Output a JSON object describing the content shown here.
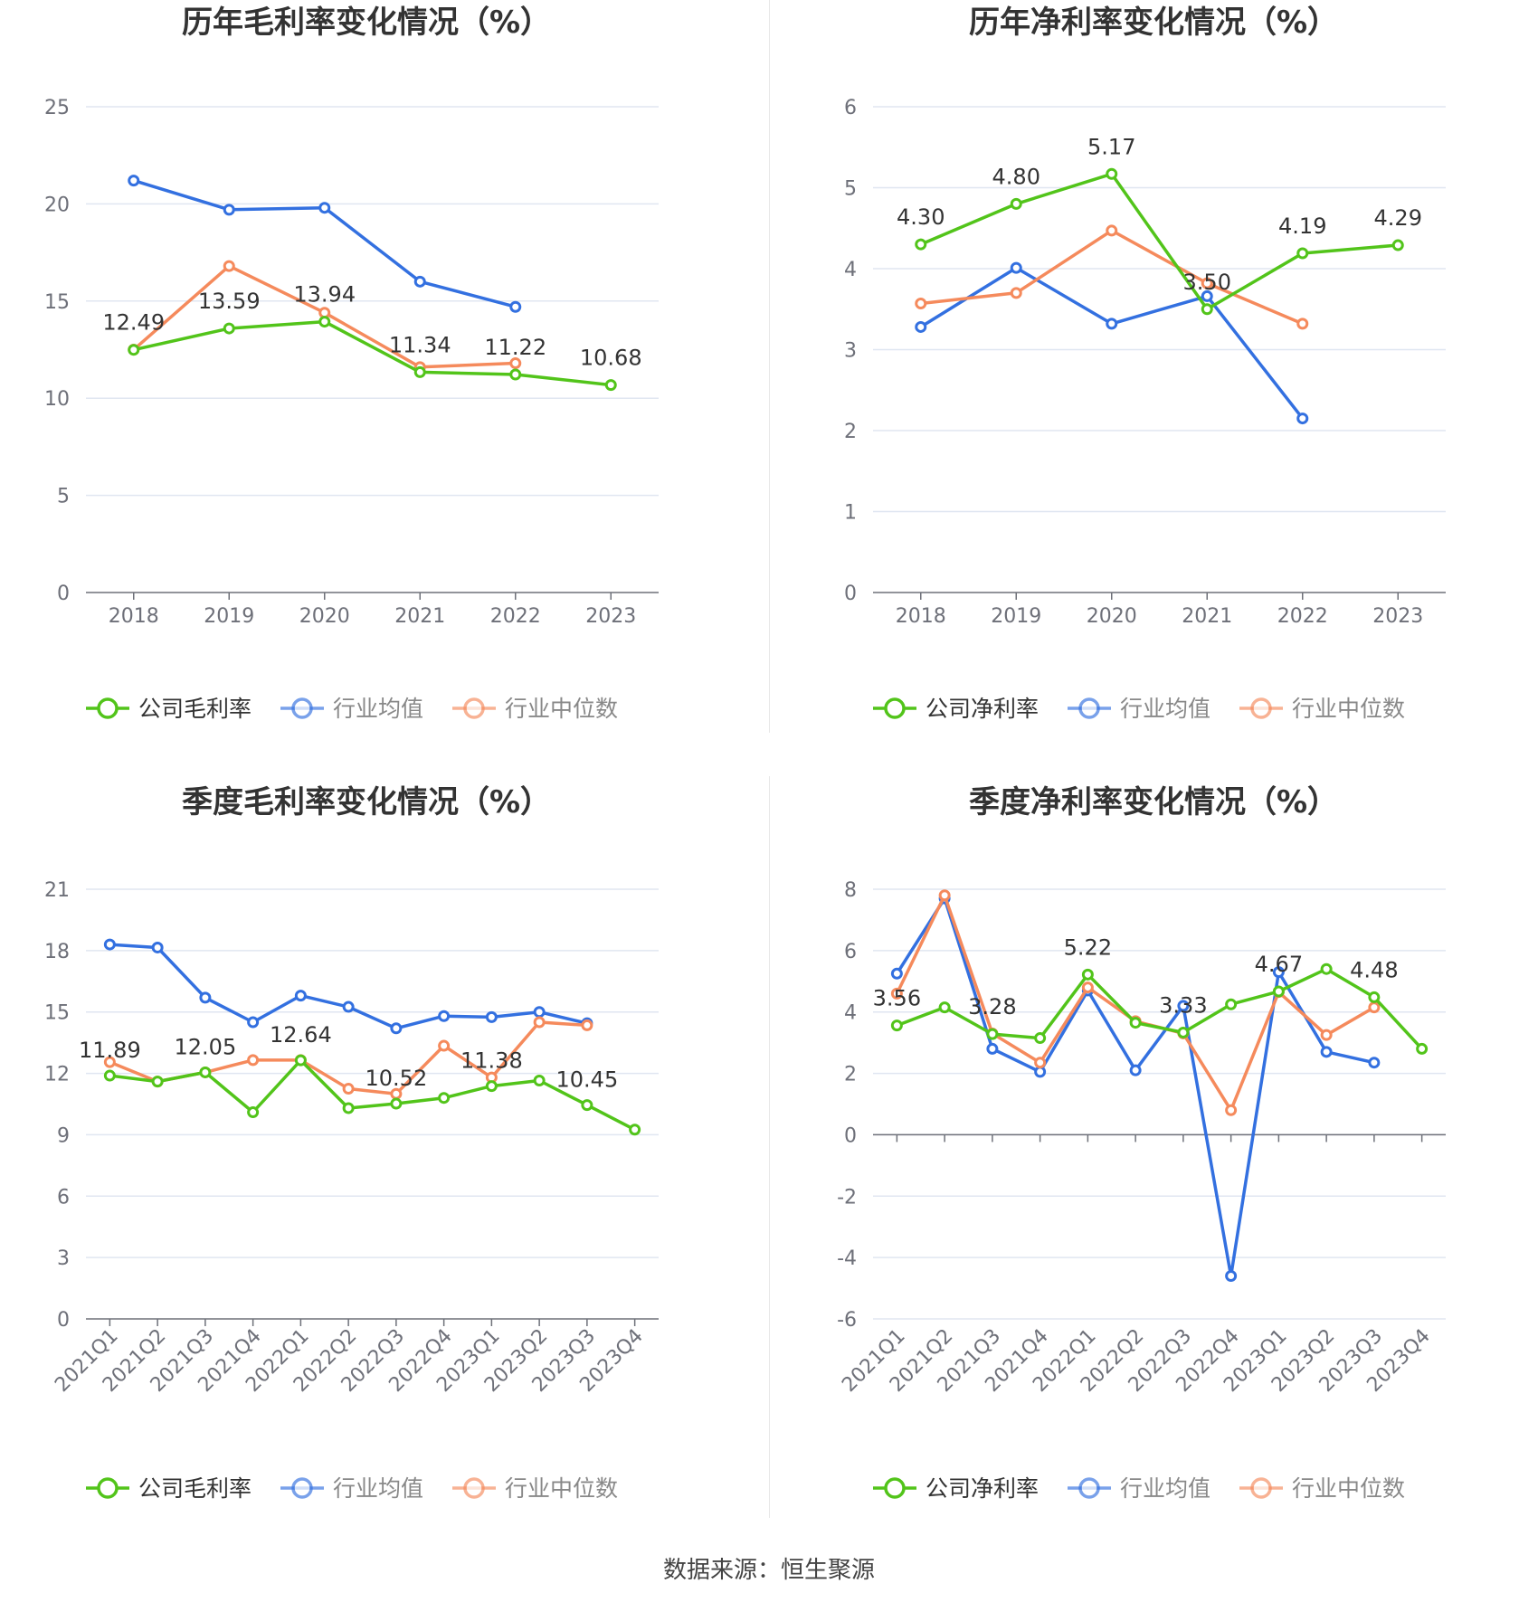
{
  "colors": {
    "company": "#52c41a",
    "avg": "#3370e0",
    "median": "#f58a5c",
    "grid": "#e0e6f1",
    "axis": "#6e7079"
  },
  "legend_icons": [
    "circle-line-icon"
  ],
  "footer": {
    "source": "数据来源：恒生聚源"
  },
  "chart_data": [
    {
      "type": "line",
      "title": "历年毛利率变化情况（%）",
      "categories": [
        "2018",
        "2019",
        "2020",
        "2021",
        "2022",
        "2023"
      ],
      "ylim": [
        0,
        25
      ],
      "yticks": [
        0,
        5,
        10,
        15,
        20,
        25
      ],
      "grid": true,
      "legend_position": "bottom",
      "series": [
        {
          "name": "公司毛利率",
          "key": "company",
          "values": [
            12.49,
            13.59,
            13.94,
            11.34,
            11.22,
            10.68
          ],
          "labels": [
            "12.49",
            "13.59",
            "13.94",
            "11.34",
            "11.22",
            "10.68"
          ]
        },
        {
          "name": "行业均值",
          "key": "avg",
          "values": [
            21.2,
            19.7,
            19.8,
            16.0,
            14.7,
            null
          ]
        },
        {
          "name": "行业中位数",
          "key": "median",
          "values": [
            12.5,
            16.8,
            14.4,
            11.6,
            11.8,
            null
          ]
        }
      ]
    },
    {
      "type": "line",
      "title": "历年净利率变化情况（%）",
      "categories": [
        "2018",
        "2019",
        "2020",
        "2021",
        "2022",
        "2023"
      ],
      "ylim": [
        0,
        6
      ],
      "yticks": [
        0,
        1,
        2,
        3,
        4,
        5,
        6
      ],
      "grid": true,
      "legend_position": "bottom",
      "series": [
        {
          "name": "公司净利率",
          "key": "company",
          "values": [
            4.3,
            4.8,
            5.17,
            3.5,
            4.19,
            4.29
          ],
          "labels": [
            "4.30",
            "4.80",
            "5.17",
            "3.50",
            "4.19",
            "4.29"
          ]
        },
        {
          "name": "行业均值",
          "key": "avg",
          "values": [
            3.28,
            4.01,
            3.32,
            3.66,
            2.15,
            null
          ]
        },
        {
          "name": "行业中位数",
          "key": "median",
          "values": [
            3.57,
            3.7,
            4.47,
            3.82,
            3.32,
            null
          ]
        }
      ]
    },
    {
      "type": "line",
      "title": "季度毛利率变化情况（%）",
      "categories": [
        "2021Q1",
        "2021Q2",
        "2021Q3",
        "2021Q4",
        "2022Q1",
        "2022Q2",
        "2022Q3",
        "2022Q4",
        "2023Q1",
        "2023Q2",
        "2023Q3",
        "2023Q4"
      ],
      "ylim": [
        0,
        21
      ],
      "yticks": [
        0,
        3,
        6,
        9,
        12,
        15,
        18,
        21
      ],
      "grid": true,
      "legend_position": "bottom",
      "series": [
        {
          "name": "公司毛利率",
          "key": "company",
          "values": [
            11.89,
            11.6,
            12.05,
            10.1,
            12.64,
            10.3,
            10.52,
            10.8,
            11.38,
            11.65,
            10.45,
            9.25
          ],
          "labels": [
            "11.89",
            "",
            "12.05",
            "",
            "12.64",
            "",
            "10.52",
            "",
            "11.38",
            "",
            "10.45",
            ""
          ]
        },
        {
          "name": "行业均值",
          "key": "avg",
          "values": [
            18.3,
            18.15,
            15.7,
            14.5,
            15.8,
            15.25,
            14.2,
            14.8,
            14.75,
            15.0,
            14.45,
            null
          ]
        },
        {
          "name": "行业中位数",
          "key": "median",
          "values": [
            12.55,
            11.6,
            12.05,
            12.65,
            12.65,
            11.25,
            11.0,
            13.35,
            11.8,
            14.5,
            14.35,
            null
          ]
        }
      ]
    },
    {
      "type": "line",
      "title": "季度净利率变化情况（%）",
      "categories": [
        "2021Q1",
        "2021Q2",
        "2021Q3",
        "2021Q4",
        "2022Q1",
        "2022Q2",
        "2022Q3",
        "2022Q4",
        "2023Q1",
        "2023Q2",
        "2023Q3",
        "2023Q4"
      ],
      "ylim": [
        -6,
        8
      ],
      "yticks": [
        -6,
        -4,
        -2,
        0,
        2,
        4,
        6,
        8
      ],
      "grid": true,
      "legend_position": "bottom",
      "series": [
        {
          "name": "公司净利率",
          "key": "company",
          "values": [
            3.56,
            4.15,
            3.28,
            3.15,
            5.22,
            3.65,
            3.33,
            4.25,
            4.67,
            5.4,
            4.48,
            2.8
          ],
          "labels": [
            "3.56",
            "",
            "3.28",
            "",
            "5.22",
            "",
            "3.33",
            "",
            "4.67",
            "",
            "4.48",
            ""
          ]
        },
        {
          "name": "行业均值",
          "key": "avg",
          "values": [
            5.25,
            7.7,
            2.8,
            2.05,
            4.7,
            2.1,
            4.2,
            -4.6,
            5.3,
            2.7,
            2.35,
            null
          ]
        },
        {
          "name": "行业中位数",
          "key": "median",
          "values": [
            4.6,
            7.8,
            3.3,
            2.35,
            4.8,
            3.7,
            3.3,
            0.8,
            4.65,
            3.25,
            4.15,
            null
          ]
        }
      ]
    }
  ]
}
